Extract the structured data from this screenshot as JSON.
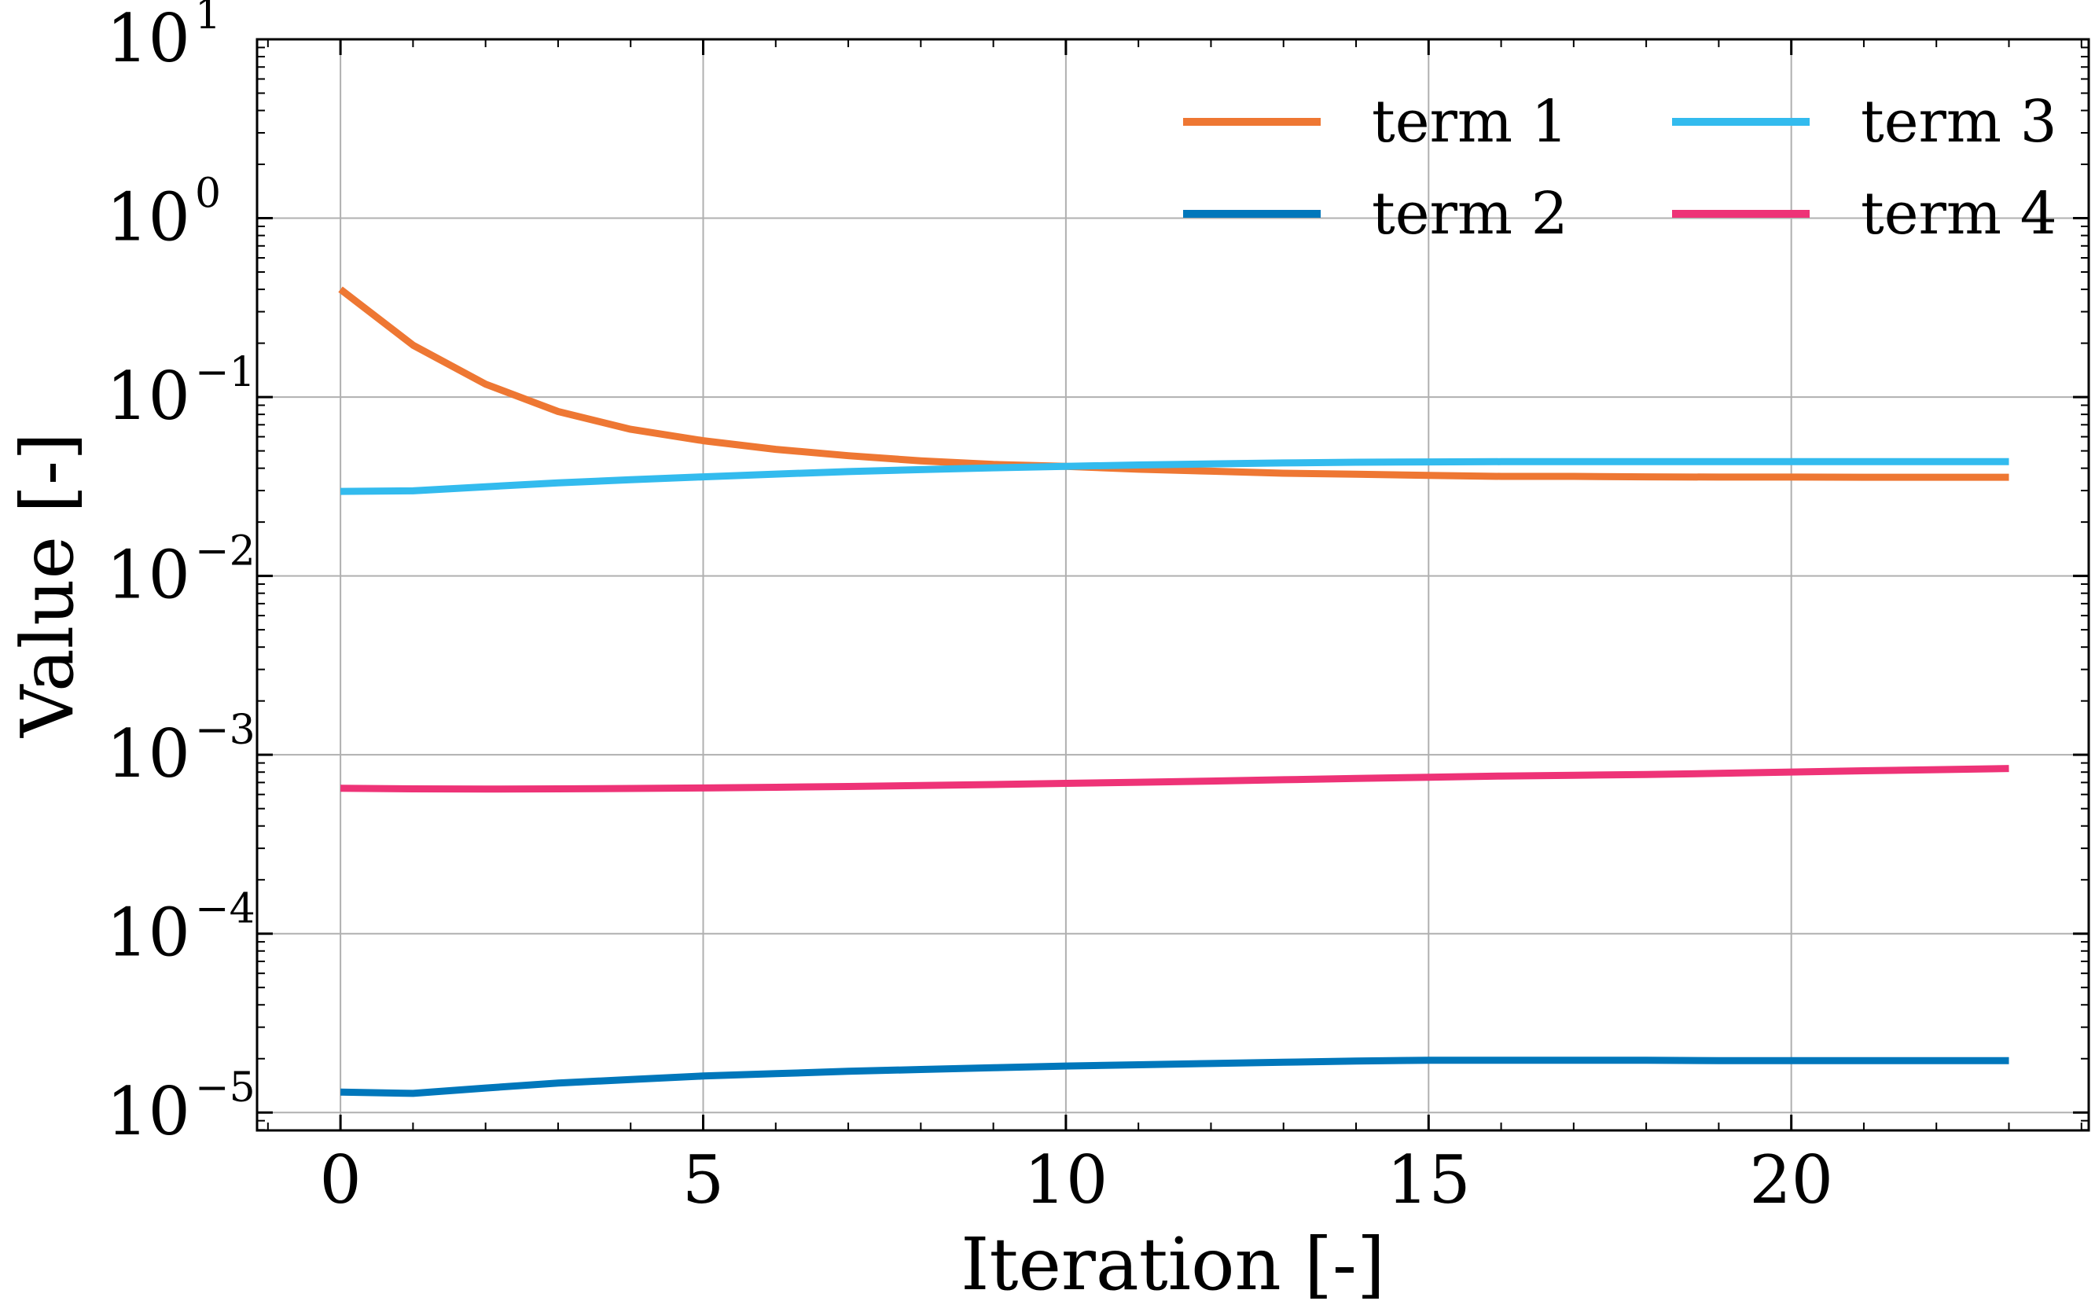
{
  "chart_data": {
    "type": "line",
    "xlabel": "Iteration [-]",
    "ylabel": "Value [-]",
    "yscale": "log",
    "xlim": [
      -1.15,
      24.1
    ],
    "ylim_exponent": [
      -5.1,
      1.0
    ],
    "xticks": [
      0,
      5,
      10,
      15,
      20
    ],
    "yticks_base": "10",
    "yticks_exponents": [
      "1",
      "0",
      "−1",
      "−2",
      "−3",
      "−4",
      "−5"
    ],
    "yticks_exponent_values": [
      1,
      0,
      -1,
      -2,
      -3,
      -4,
      -5
    ],
    "grid": true,
    "legend_position": "top-right",
    "x": [
      0,
      1,
      2,
      3,
      4,
      5,
      6,
      7,
      8,
      9,
      10,
      11,
      12,
      13,
      14,
      15,
      16,
      17,
      18,
      19,
      20,
      21,
      22,
      23
    ],
    "series": [
      {
        "name": "term 1",
        "color": "#EE7733",
        "values": [
          0.4,
          0.195,
          0.118,
          0.083,
          0.066,
          0.057,
          0.051,
          0.047,
          0.044,
          0.042,
          0.041,
          0.0395,
          0.0385,
          0.0375,
          0.037,
          0.0365,
          0.036,
          0.036,
          0.0358,
          0.0357,
          0.0357,
          0.0356,
          0.0356,
          0.0356
        ]
      },
      {
        "name": "term 2",
        "color": "#0077BB",
        "values": [
          1.3e-05,
          1.28e-05,
          1.37e-05,
          1.46e-05,
          1.53e-05,
          1.6e-05,
          1.65e-05,
          1.7e-05,
          1.74e-05,
          1.78e-05,
          1.82e-05,
          1.85e-05,
          1.88e-05,
          1.91e-05,
          1.94e-05,
          1.96e-05,
          1.96e-05,
          1.96e-05,
          1.96e-05,
          1.95e-05,
          1.95e-05,
          1.95e-05,
          1.95e-05,
          1.95e-05
        ]
      },
      {
        "name": "term 3",
        "color": "#33BBEE",
        "values": [
          0.0297,
          0.0299,
          0.0315,
          0.0331,
          0.0345,
          0.0358,
          0.0371,
          0.0383,
          0.0393,
          0.0402,
          0.041,
          0.0417,
          0.0423,
          0.0428,
          0.0432,
          0.0434,
          0.0435,
          0.0435,
          0.0435,
          0.0435,
          0.0435,
          0.0435,
          0.0435,
          0.0435
        ]
      },
      {
        "name": "term 4",
        "color": "#EE3377",
        "values": [
          0.00065,
          0.000645,
          0.000643,
          0.000645,
          0.000648,
          0.000652,
          0.000658,
          0.000665,
          0.000673,
          0.000682,
          0.000692,
          0.000702,
          0.000713,
          0.000725,
          0.000737,
          0.000749,
          0.000761,
          0.000768,
          0.000776,
          0.000787,
          0.000801,
          0.000814,
          0.000826,
          0.000838
        ]
      }
    ]
  }
}
